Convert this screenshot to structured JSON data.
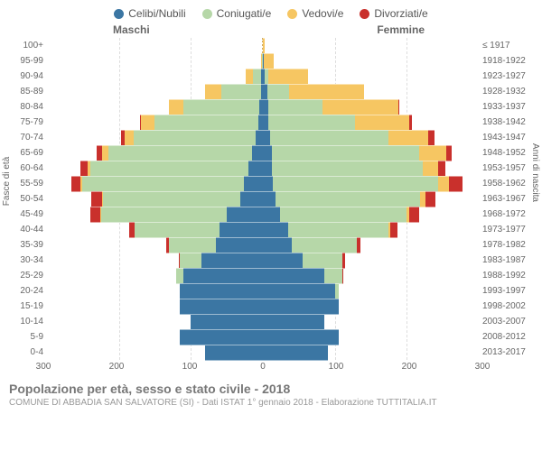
{
  "legend": [
    {
      "label": "Celibi/Nubili",
      "color": "#3b76a3"
    },
    {
      "label": "Coniugati/e",
      "color": "#b6d7a8"
    },
    {
      "label": "Vedovi/e",
      "color": "#f6c662"
    },
    {
      "label": "Divorziati/e",
      "color": "#c9302c"
    }
  ],
  "gender_left": "Maschi",
  "gender_right": "Femmine",
  "y_left_title": "Fasce di età",
  "y_right_title": "Anni di nascita",
  "title": "Popolazione per età, sesso e stato civile - 2018",
  "subtitle": "COMUNE DI ABBADIA SAN SALVATORE (SI) - Dati ISTAT 1° gennaio 2018 - Elaborazione TUTTITALIA.IT",
  "x_max": 300,
  "x_ticks": [
    300,
    200,
    100,
    0,
    100,
    200,
    300
  ],
  "colors": {
    "single": "#3b76a3",
    "married": "#b6d7a8",
    "widowed": "#f6c662",
    "divorced": "#c9302c",
    "grid": "#dddddd",
    "center": "#ccaa66",
    "bg": "#ffffff"
  },
  "rows": [
    {
      "age": "100+",
      "birth": "≤ 1917",
      "m": {
        "s": 0,
        "c": 0,
        "w": 0,
        "d": 0
      },
      "f": {
        "s": 0,
        "c": 0,
        "w": 3,
        "d": 0
      }
    },
    {
      "age": "95-99",
      "birth": "1918-1922",
      "m": {
        "s": 0,
        "c": 1,
        "w": 2,
        "d": 0
      },
      "f": {
        "s": 1,
        "c": 0,
        "w": 14,
        "d": 0
      }
    },
    {
      "age": "90-94",
      "birth": "1923-1927",
      "m": {
        "s": 2,
        "c": 12,
        "w": 10,
        "d": 0
      },
      "f": {
        "s": 3,
        "c": 5,
        "w": 55,
        "d": 0
      }
    },
    {
      "age": "85-89",
      "birth": "1928-1932",
      "m": {
        "s": 3,
        "c": 55,
        "w": 22,
        "d": 0
      },
      "f": {
        "s": 6,
        "c": 30,
        "w": 105,
        "d": 0
      }
    },
    {
      "age": "80-84",
      "birth": "1933-1937",
      "m": {
        "s": 5,
        "c": 105,
        "w": 20,
        "d": 1
      },
      "f": {
        "s": 8,
        "c": 75,
        "w": 105,
        "d": 2
      }
    },
    {
      "age": "75-79",
      "birth": "1938-1942",
      "m": {
        "s": 6,
        "c": 145,
        "w": 18,
        "d": 2
      },
      "f": {
        "s": 8,
        "c": 120,
        "w": 75,
        "d": 4
      }
    },
    {
      "age": "70-74",
      "birth": "1943-1947",
      "m": {
        "s": 10,
        "c": 170,
        "w": 12,
        "d": 5
      },
      "f": {
        "s": 10,
        "c": 165,
        "w": 55,
        "d": 8
      }
    },
    {
      "age": "65-69",
      "birth": "1948-1952",
      "m": {
        "s": 15,
        "c": 200,
        "w": 8,
        "d": 8
      },
      "f": {
        "s": 12,
        "c": 205,
        "w": 38,
        "d": 8
      }
    },
    {
      "age": "60-64",
      "birth": "1953-1957",
      "m": {
        "s": 20,
        "c": 220,
        "w": 4,
        "d": 10
      },
      "f": {
        "s": 12,
        "c": 210,
        "w": 22,
        "d": 10
      }
    },
    {
      "age": "55-59",
      "birth": "1958-1962",
      "m": {
        "s": 26,
        "c": 225,
        "w": 3,
        "d": 12
      },
      "f": {
        "s": 14,
        "c": 230,
        "w": 15,
        "d": 18
      }
    },
    {
      "age": "50-54",
      "birth": "1963-1967",
      "m": {
        "s": 32,
        "c": 190,
        "w": 2,
        "d": 15
      },
      "f": {
        "s": 18,
        "c": 200,
        "w": 8,
        "d": 14
      }
    },
    {
      "age": "45-49",
      "birth": "1968-1972",
      "m": {
        "s": 50,
        "c": 175,
        "w": 1,
        "d": 14
      },
      "f": {
        "s": 24,
        "c": 175,
        "w": 4,
        "d": 14
      }
    },
    {
      "age": "40-44",
      "birth": "1973-1977",
      "m": {
        "s": 60,
        "c": 118,
        "w": 0,
        "d": 8
      },
      "f": {
        "s": 35,
        "c": 140,
        "w": 2,
        "d": 10
      }
    },
    {
      "age": "35-39",
      "birth": "1978-1982",
      "m": {
        "s": 65,
        "c": 65,
        "w": 0,
        "d": 4
      },
      "f": {
        "s": 40,
        "c": 90,
        "w": 0,
        "d": 6
      }
    },
    {
      "age": "30-34",
      "birth": "1983-1987",
      "m": {
        "s": 85,
        "c": 30,
        "w": 0,
        "d": 2
      },
      "f": {
        "s": 55,
        "c": 55,
        "w": 0,
        "d": 4
      }
    },
    {
      "age": "25-29",
      "birth": "1988-1992",
      "m": {
        "s": 110,
        "c": 10,
        "w": 0,
        "d": 0
      },
      "f": {
        "s": 85,
        "c": 25,
        "w": 0,
        "d": 1
      }
    },
    {
      "age": "20-24",
      "birth": "1993-1997",
      "m": {
        "s": 115,
        "c": 1,
        "w": 0,
        "d": 0
      },
      "f": {
        "s": 100,
        "c": 6,
        "w": 0,
        "d": 0
      }
    },
    {
      "age": "15-19",
      "birth": "1998-2002",
      "m": {
        "s": 115,
        "c": 0,
        "w": 0,
        "d": 0
      },
      "f": {
        "s": 105,
        "c": 0,
        "w": 0,
        "d": 0
      }
    },
    {
      "age": "10-14",
      "birth": "2003-2007",
      "m": {
        "s": 100,
        "c": 0,
        "w": 0,
        "d": 0
      },
      "f": {
        "s": 85,
        "c": 0,
        "w": 0,
        "d": 0
      }
    },
    {
      "age": "5-9",
      "birth": "2008-2012",
      "m": {
        "s": 115,
        "c": 0,
        "w": 0,
        "d": 0
      },
      "f": {
        "s": 105,
        "c": 0,
        "w": 0,
        "d": 0
      }
    },
    {
      "age": "0-4",
      "birth": "2013-2017",
      "m": {
        "s": 80,
        "c": 0,
        "w": 0,
        "d": 0
      },
      "f": {
        "s": 90,
        "c": 0,
        "w": 0,
        "d": 0
      }
    }
  ]
}
